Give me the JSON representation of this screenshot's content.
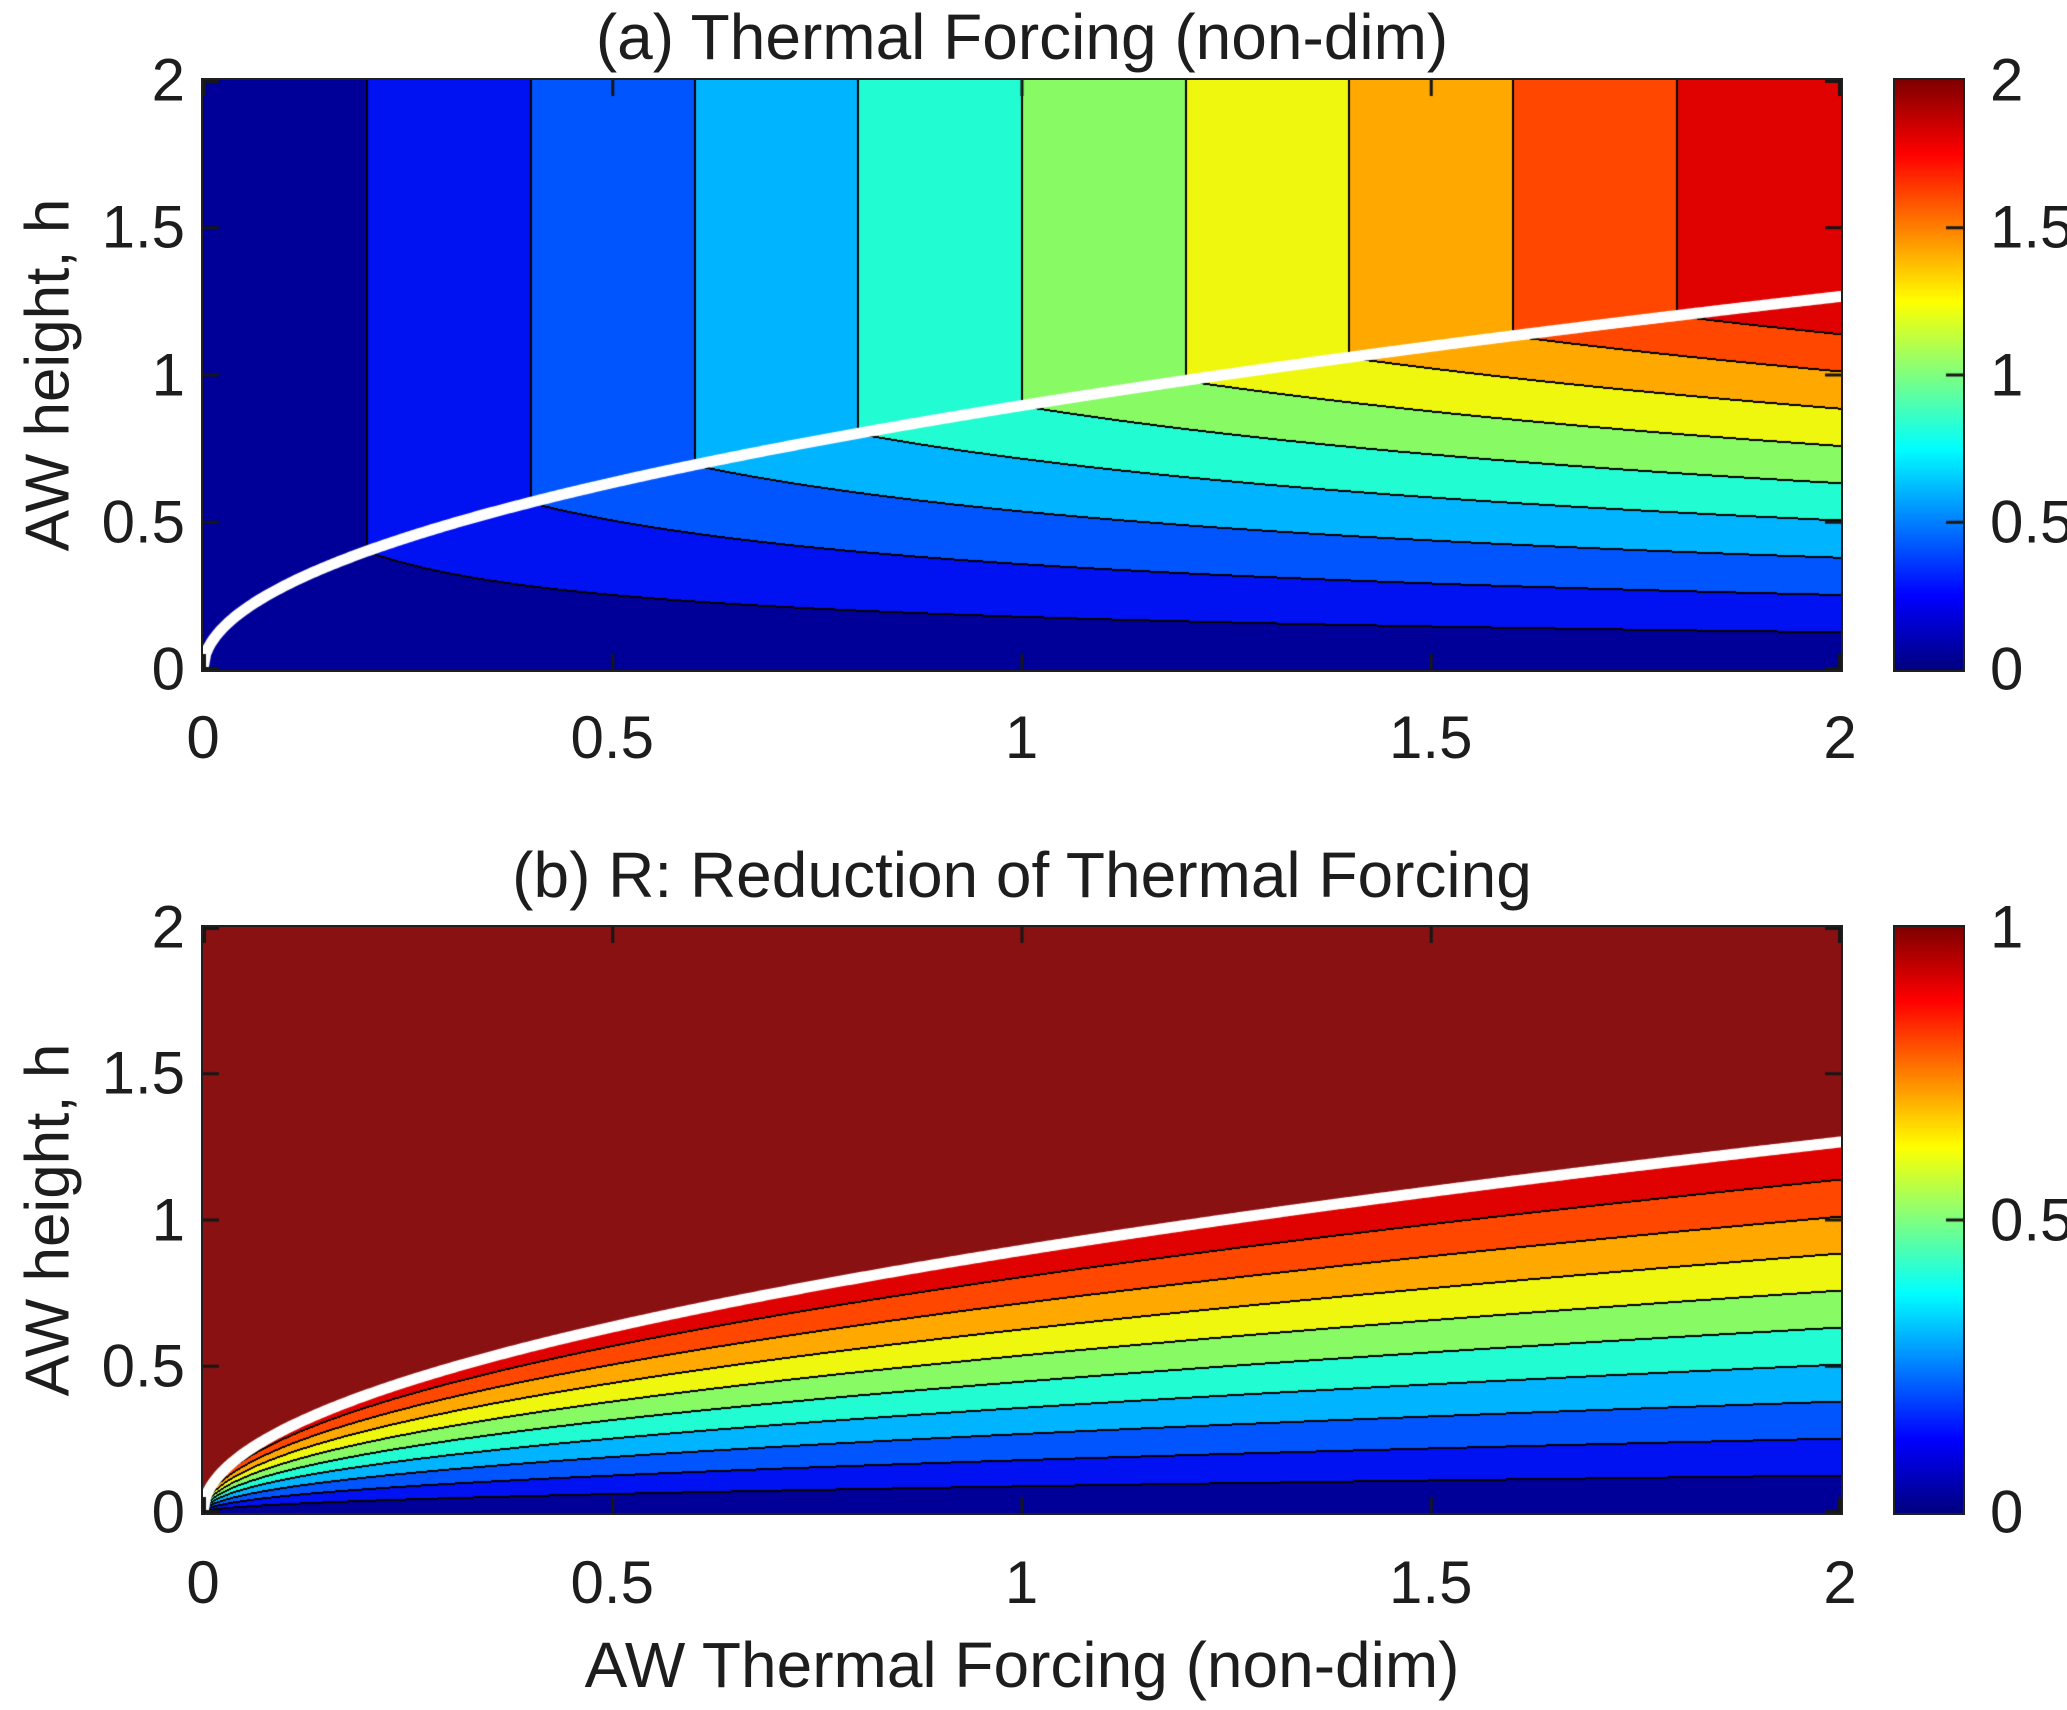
{
  "figure": {
    "background": "#FFFFFF",
    "text_color": "#1D1D1D"
  },
  "chart_data": {
    "type": "filled_contour",
    "colormap": "jet",
    "x_range": [
      0,
      2
    ],
    "y_range": [
      0,
      2
    ],
    "xlabel": "AW Thermal Forcing (non-dim)",
    "ylabel": "AW height, h",
    "x_ticks": [
      {
        "label": "0",
        "value": 0
      },
      {
        "label": "0.5",
        "value": 0.5
      },
      {
        "label": "1",
        "value": 1
      },
      {
        "label": "1.5",
        "value": 1.5
      },
      {
        "label": "2",
        "value": 2
      }
    ],
    "band_colors": [
      "#000099",
      "#0011F2",
      "#0055FF",
      "#00B4FF",
      "#21FCD2",
      "#88FA64",
      "#EFF70E",
      "#FFA900",
      "#FF4700",
      "#DF0200"
    ],
    "over_max_color": "#8A1111",
    "contour_line_color": "#000000",
    "critical_curve": {
      "description": "white curve where reduction saturates (R = 1)",
      "formula": "h_c = sqrt(0.8 * TF)",
      "coefficient": 0.8,
      "color": "#FFFFFF",
      "width": 11
    },
    "panels": [
      {
        "id": "a",
        "title": "(a) Thermal Forcing (non-dim)",
        "field": "TF * R",
        "levels": {
          "min": 0,
          "max": 2,
          "step": 0.2
        },
        "y_ticks": [
          {
            "label": "2",
            "value": 2
          },
          {
            "label": "1.5",
            "value": 1.5
          },
          {
            "label": "1",
            "value": 1
          },
          {
            "label": "0.5",
            "value": 0.5
          },
          {
            "label": "0",
            "value": 0
          }
        ],
        "colorbar": {
          "min": 0,
          "max": 2,
          "ticks": [
            {
              "label": "2",
              "value": 2
            },
            {
              "label": "1.5",
              "value": 1.5
            },
            {
              "label": "1",
              "value": 1
            },
            {
              "label": "0.5",
              "value": 0.5
            },
            {
              "label": "0",
              "value": 0
            }
          ]
        }
      },
      {
        "id": "b",
        "title": "(b) R: Reduction of Thermal Forcing",
        "field": "R = min(1, h / h_c)",
        "levels": {
          "min": 0,
          "max": 1,
          "step": 0.1
        },
        "y_ticks": [
          {
            "label": "2",
            "value": 2
          },
          {
            "label": "1.5",
            "value": 1.5
          },
          {
            "label": "1",
            "value": 1
          },
          {
            "label": "0.5",
            "value": 0.5
          },
          {
            "label": "0",
            "value": 0
          }
        ],
        "colorbar": {
          "min": 0,
          "max": 1,
          "ticks": [
            {
              "label": "1",
              "value": 1
            },
            {
              "label": "0.5",
              "value": 0.5
            },
            {
              "label": "0",
              "value": 0
            }
          ]
        }
      }
    ]
  }
}
